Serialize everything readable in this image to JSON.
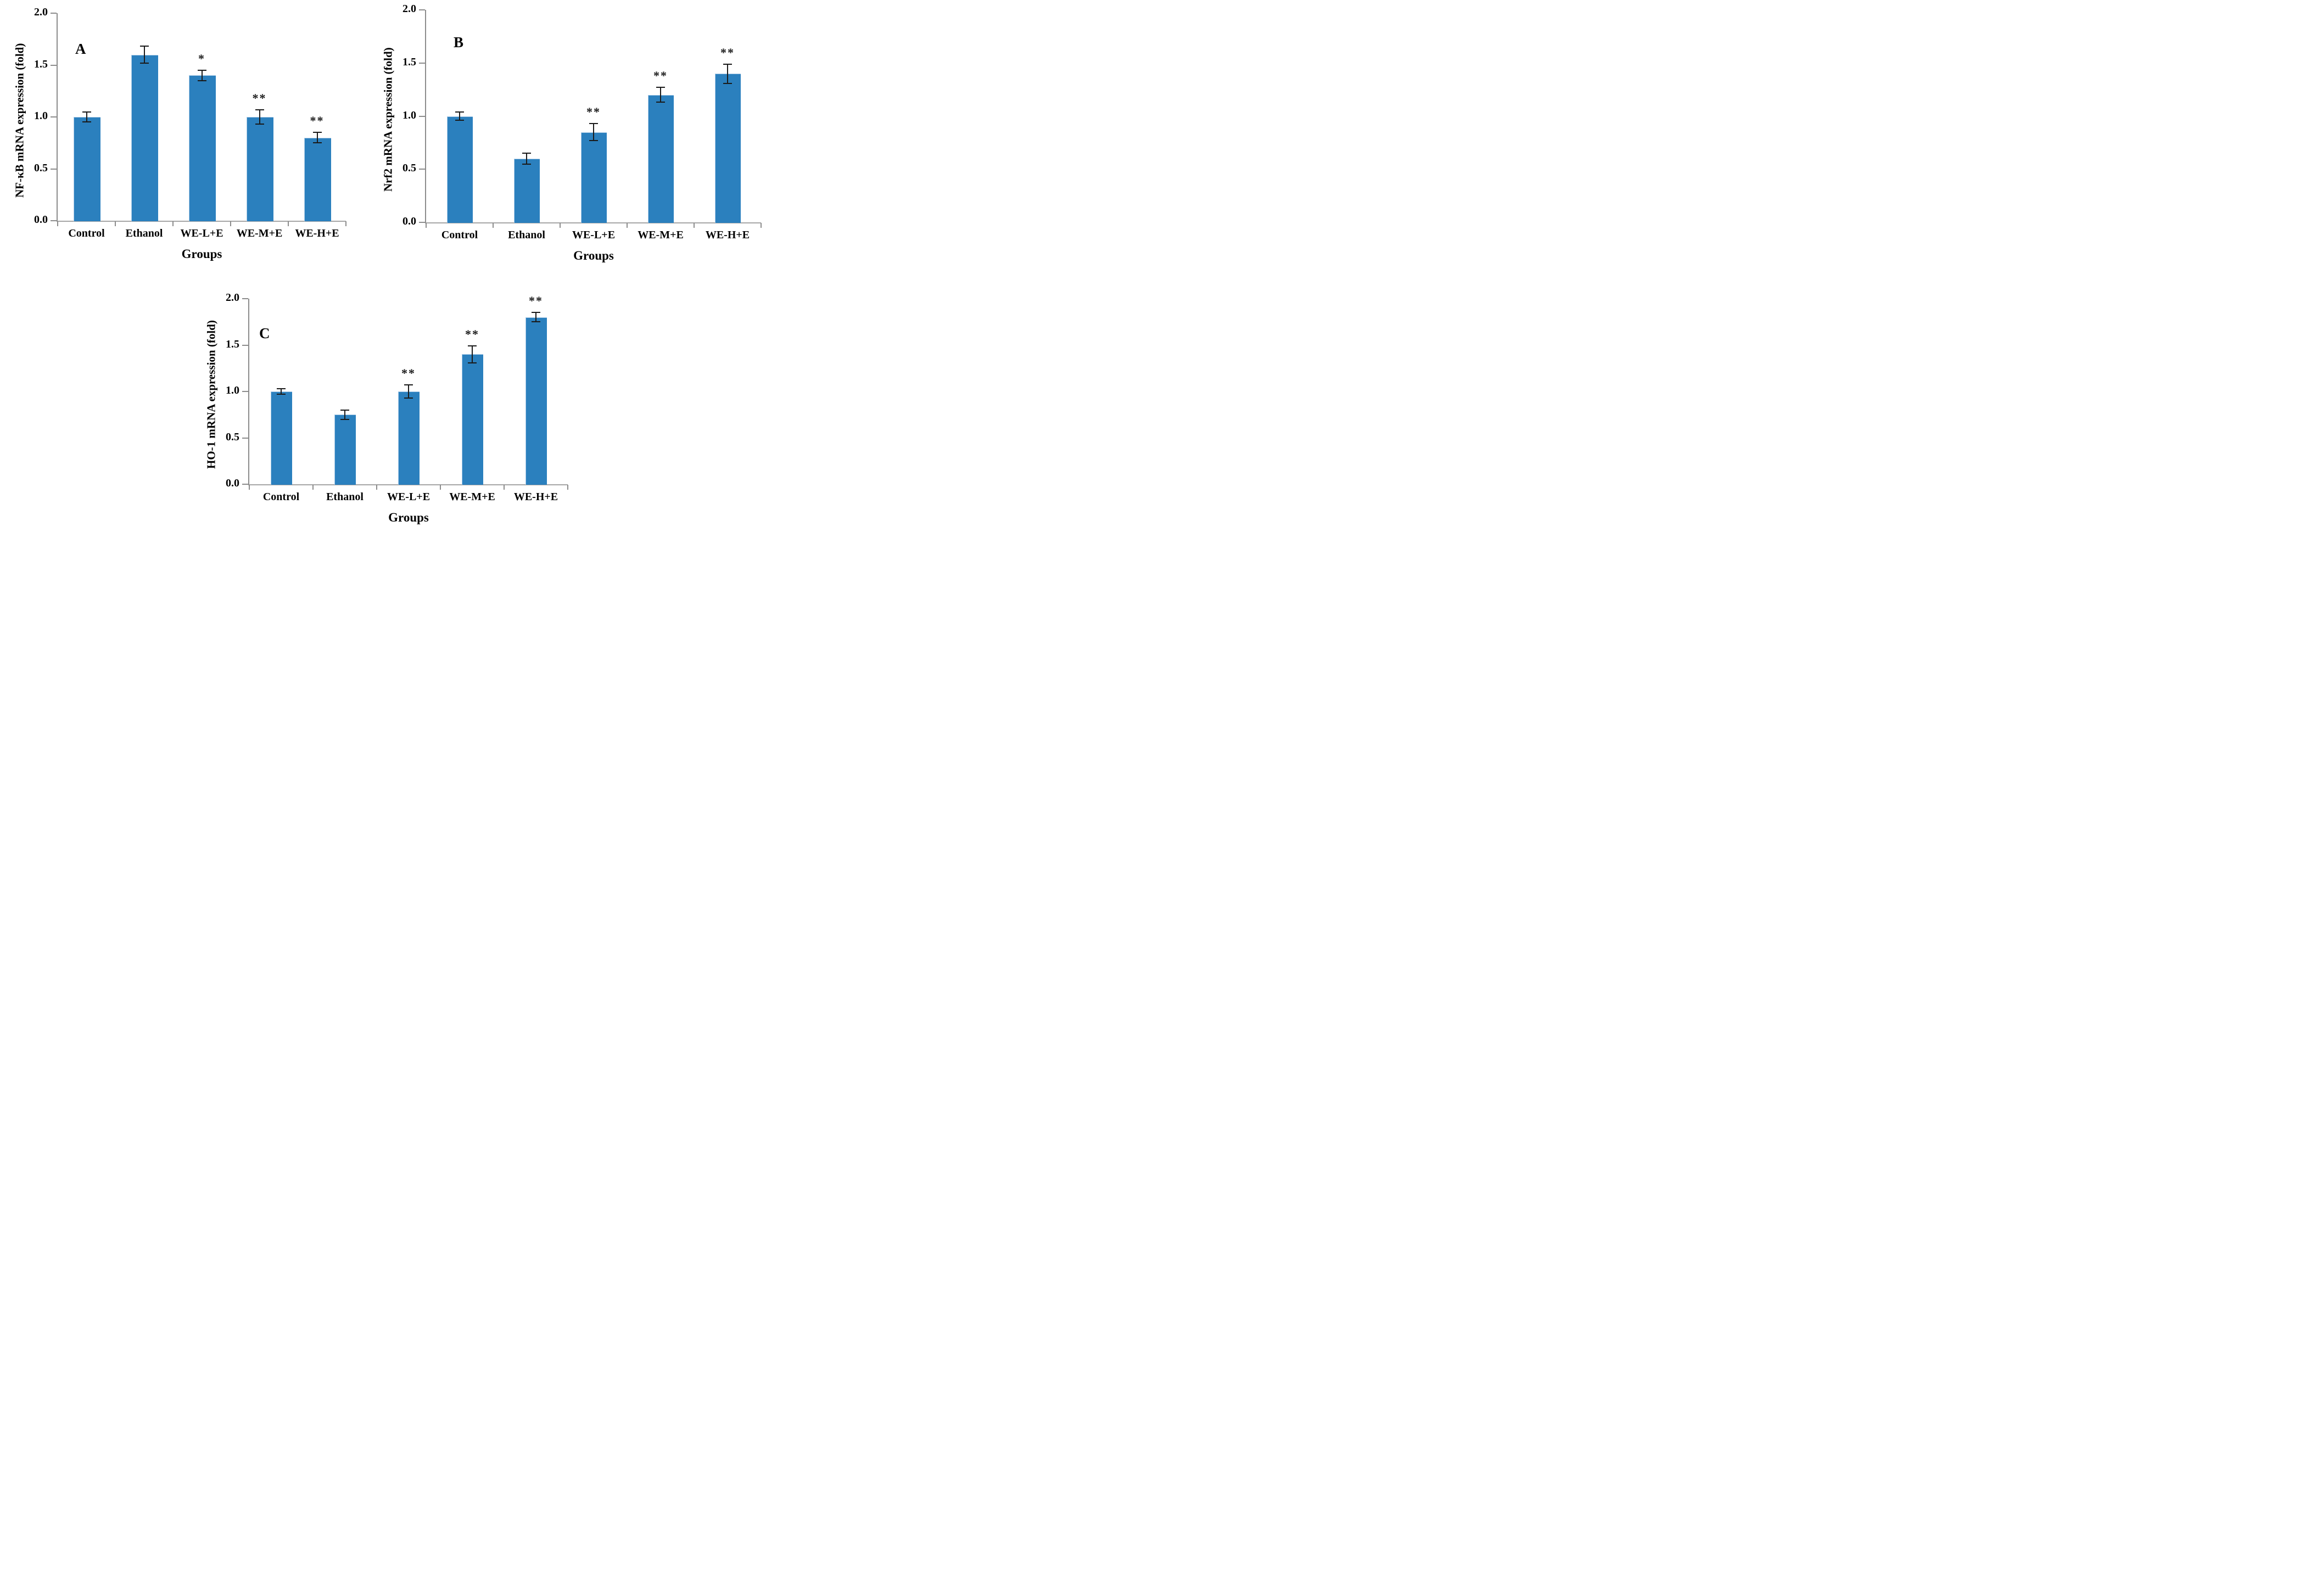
{
  "figure": {
    "background": "#ffffff",
    "bar_color": "#2B80BE",
    "axis_color": "#8c8c8c",
    "error_bar_color": "#1a1a1a",
    "panel_letters": [
      "A",
      "B",
      "C"
    ]
  },
  "chart_data": [
    {
      "type": "bar",
      "panel_label": "A",
      "ylabel": "NF-κB mRNA expression (fold)",
      "xlabel": "Groups",
      "categories": [
        "Control",
        "Ethanol",
        "WE-L+E",
        "WE-M+E",
        "WE-H+E"
      ],
      "values": [
        1.0,
        1.6,
        1.4,
        1.0,
        0.8
      ],
      "errors": [
        0.05,
        0.08,
        0.05,
        0.07,
        0.05
      ],
      "significance": [
        "",
        "",
        "*",
        "**",
        "**"
      ],
      "yticks": [
        "2.0",
        "1.5",
        "1.0",
        "0.5",
        "0.0"
      ],
      "ylim": [
        0,
        2.0
      ],
      "grid": false,
      "legend": false,
      "bar_color": "#2B80BE"
    },
    {
      "type": "bar",
      "panel_label": "B",
      "ylabel": "Nrf2 mRNA expression (fold)",
      "xlabel": "Groups",
      "categories": [
        "Control",
        "Ethanol",
        "WE-L+E",
        "WE-M+E",
        "WE-H+E"
      ],
      "values": [
        1.0,
        0.6,
        0.85,
        1.2,
        1.4
      ],
      "errors": [
        0.04,
        0.05,
        0.08,
        0.07,
        0.09
      ],
      "significance": [
        "",
        "",
        "**",
        "**",
        "**"
      ],
      "yticks": [
        "2.0",
        "1.5",
        "1.0",
        "0.5",
        "0.0"
      ],
      "ylim": [
        0,
        2.0
      ],
      "grid": false,
      "legend": false,
      "bar_color": "#2B80BE"
    },
    {
      "type": "bar",
      "panel_label": "C",
      "ylabel": "HO-1 mRNA expression (fold)",
      "xlabel": "Groups",
      "categories": [
        "Control",
        "Ethanol",
        "WE-L+E",
        "WE-M+E",
        "WE-H+E"
      ],
      "values": [
        1.0,
        0.75,
        1.0,
        1.4,
        1.8
      ],
      "errors": [
        0.03,
        0.05,
        0.07,
        0.09,
        0.05
      ],
      "significance": [
        "",
        "",
        "**",
        "**",
        "**"
      ],
      "yticks": [
        "2.0",
        "1.5",
        "1.0",
        "0.5",
        "0.0"
      ],
      "ylim": [
        0,
        2.0
      ],
      "grid": false,
      "legend": false,
      "bar_color": "#2B80BE"
    }
  ]
}
